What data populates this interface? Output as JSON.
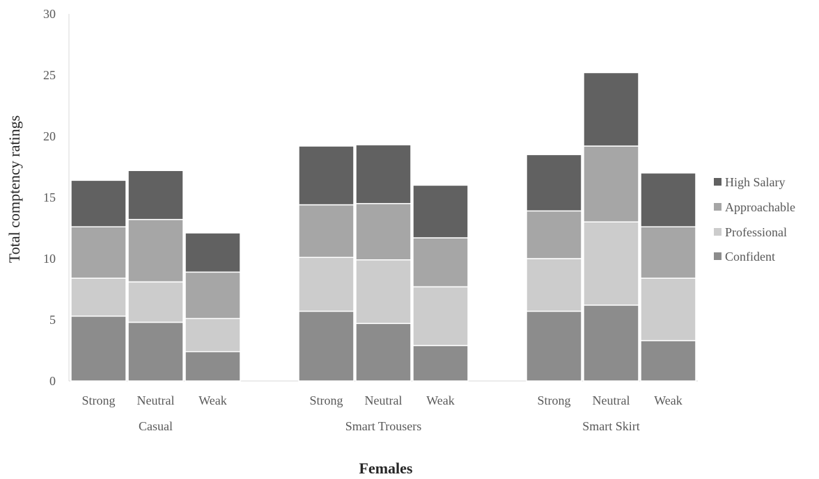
{
  "chart_data": {
    "type": "bar",
    "stacked": true,
    "categories": [
      "Strong",
      "Neutral",
      "Weak",
      "Strong",
      "Neutral",
      "Weak",
      "Strong",
      "Neutral",
      "Weak"
    ],
    "groups": [
      {
        "label": "Casual",
        "categories": [
          "Strong",
          "Neutral",
          "Weak"
        ]
      },
      {
        "label": "Smart Trousers",
        "categories": [
          "Strong",
          "Neutral",
          "Weak"
        ]
      },
      {
        "label": "Smart Skirt",
        "categories": [
          "Strong",
          "Neutral",
          "Weak"
        ]
      }
    ],
    "series": [
      {
        "name": "Confident",
        "color": "#8c8c8c",
        "values": [
          5.3,
          4.8,
          2.4,
          5.7,
          4.7,
          2.9,
          5.7,
          6.2,
          3.3
        ]
      },
      {
        "name": "Professional",
        "color": "#cccccc",
        "values": [
          3.1,
          3.3,
          2.7,
          4.4,
          5.2,
          4.8,
          4.3,
          6.8,
          5.1
        ]
      },
      {
        "name": "Approachable",
        "color": "#a6a6a6",
        "values": [
          4.2,
          5.1,
          3.8,
          4.3,
          4.6,
          4.0,
          3.9,
          6.2,
          4.2
        ]
      },
      {
        "name": "High Salary",
        "color": "#616161",
        "values": [
          3.8,
          4.0,
          3.2,
          4.8,
          4.8,
          4.3,
          4.6,
          6.0,
          4.4
        ]
      }
    ],
    "title": "",
    "xlabel": "Females",
    "ylabel": "Total comptency ratings",
    "ylim": [
      0,
      30
    ],
    "yticks": [
      0,
      5,
      10,
      15,
      20,
      25,
      30
    ],
    "grid": false,
    "legend": {
      "position": "right",
      "order": [
        "High Salary",
        "Approachable",
        "Professional",
        "Confident"
      ]
    }
  }
}
